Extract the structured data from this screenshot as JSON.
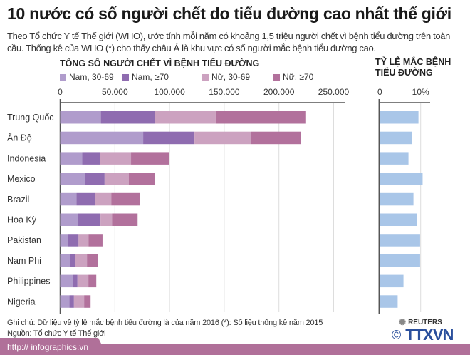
{
  "header": {
    "title": "10 nước có số người chết do tiểu đường cao nhất thế giới",
    "subtitle": "Theo Tổ chức Y tế Thế giới (WHO), ước tính mỗi năm có khoảng 1,5 triệu người chết vì bệnh tiểu đường trên toàn cầu. Thống kê của WHO (*) cho thấy châu Á là khu vực có số người mắc bệnh tiểu đường cao."
  },
  "chart_data": [
    {
      "type": "bar",
      "stacked": true,
      "orientation": "horizontal",
      "title": "TỔNG SỐ NGƯỜI CHẾT VÌ BỆNH TIỂU ĐƯỜNG",
      "categories": [
        "Trung Quốc",
        "Ấn Độ",
        "Indonesia",
        "Mexico",
        "Brazil",
        "Hoa Kỳ",
        "Pakistan",
        "Nam Phi",
        "Philippines",
        "Nigeria"
      ],
      "series": [
        {
          "name": "Nam, 30-69",
          "color": "#b09ccc",
          "values": [
            37200,
            75900,
            20200,
            23000,
            15000,
            16500,
            7200,
            8900,
            11700,
            8500
          ]
        },
        {
          "name": "Nam, ≥70",
          "color": "#8f6cb0",
          "values": [
            49100,
            46900,
            16100,
            17600,
            16700,
            20400,
            9600,
            5000,
            4100,
            4100
          ]
        },
        {
          "name": "Nữ, 30-69",
          "color": "#cca2c0",
          "values": [
            55900,
            51700,
            28500,
            22200,
            15000,
            10600,
            9100,
            10600,
            10000,
            9300
          ]
        },
        {
          "name": "Nữ, ≥70",
          "color": "#b2719c",
          "values": [
            82600,
            45600,
            34600,
            24100,
            25900,
            23300,
            12800,
            9800,
            7200,
            5900
          ]
        }
      ],
      "xlim": [
        0,
        260000
      ],
      "ticks": [
        0,
        50000,
        100000,
        150000,
        200000,
        250000
      ],
      "tick_labels": [
        "0",
        "50.000",
        "100.000",
        "150.000",
        "200.000",
        "250.000"
      ],
      "grid": true,
      "legend": "top"
    },
    {
      "type": "bar",
      "orientation": "horizontal",
      "title": "TỶ LỆ MẮC BỆNH TIỂU ĐƯỜNG",
      "color": "#a9c6e8",
      "categories": [
        "Trung Quốc",
        "Ấn Độ",
        "Indonesia",
        "Mexico",
        "Brazil",
        "Hoa Kỳ",
        "Pakistan",
        "Nam Phi",
        "Philippines",
        "Nigeria"
      ],
      "values": [
        9.3,
        7.7,
        6.9,
        10.3,
        8.1,
        9.0,
        9.7,
        9.7,
        5.7,
        4.3
      ],
      "unit": "%",
      "xlim": [
        0,
        12.5
      ],
      "ticks": [
        0,
        10
      ],
      "tick_labels": [
        "0",
        "10%"
      ]
    }
  ],
  "footer": {
    "note": "Ghi chú: Dữ liệu về tỷ lệ mắc bệnh tiểu đường là của năm 2016  (*): Số liệu thống kê năm 2015",
    "source": "Nguồn: Tổ chức Y tế Thế giới",
    "partner": "REUTERS",
    "url": "http:// infographics.vn",
    "copyright": "©",
    "agency": "TTXVN"
  }
}
